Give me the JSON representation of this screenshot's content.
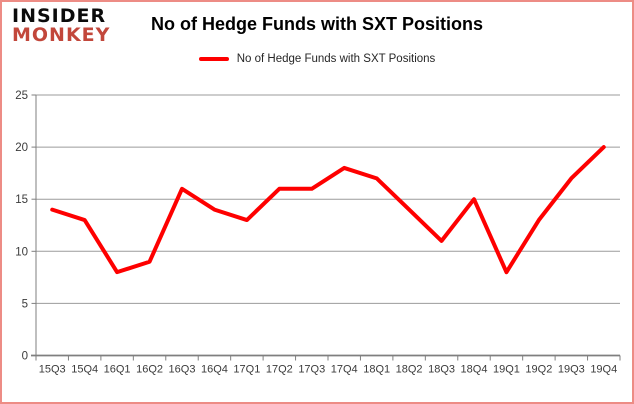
{
  "brand": {
    "line1": "INSIDER",
    "line2": "MONKEY",
    "line1_color": "#0b0b0b",
    "line2_color": "#c2473b"
  },
  "title": "No of Hedge Funds with SXT Positions",
  "legend": {
    "label": "No of Hedge Funds with SXT Positions",
    "swatch_color": "#fe0000"
  },
  "frame": {
    "border_color": "#ed8c85",
    "background": "#ffffff"
  },
  "chart_data": {
    "type": "line",
    "title": "No of Hedge Funds with SXT Positions",
    "series": [
      {
        "name": "No of Hedge Funds with SXT Positions",
        "values": [
          14,
          13,
          8,
          9,
          16,
          14,
          13,
          16,
          16,
          18,
          17,
          14,
          11,
          15,
          8,
          13,
          17,
          20
        ]
      }
    ],
    "categories": [
      "15Q3",
      "15Q4",
      "16Q1",
      "16Q2",
      "16Q3",
      "16Q4",
      "17Q1",
      "17Q2",
      "17Q3",
      "17Q4",
      "18Q1",
      "18Q2",
      "18Q3",
      "18Q4",
      "19Q1",
      "19Q2",
      "19Q3",
      "19Q4"
    ],
    "xlabel": "",
    "ylabel": "",
    "ylim": [
      0,
      25
    ],
    "yticks": [
      0,
      5,
      10,
      15,
      20,
      25
    ],
    "grid": true,
    "legend_position": "top",
    "line_color": "#fe0000",
    "gridline_color": "#9b9b9b",
    "axis_color": "#7f7f7f",
    "tick_label_color": "#3b3b3b"
  }
}
